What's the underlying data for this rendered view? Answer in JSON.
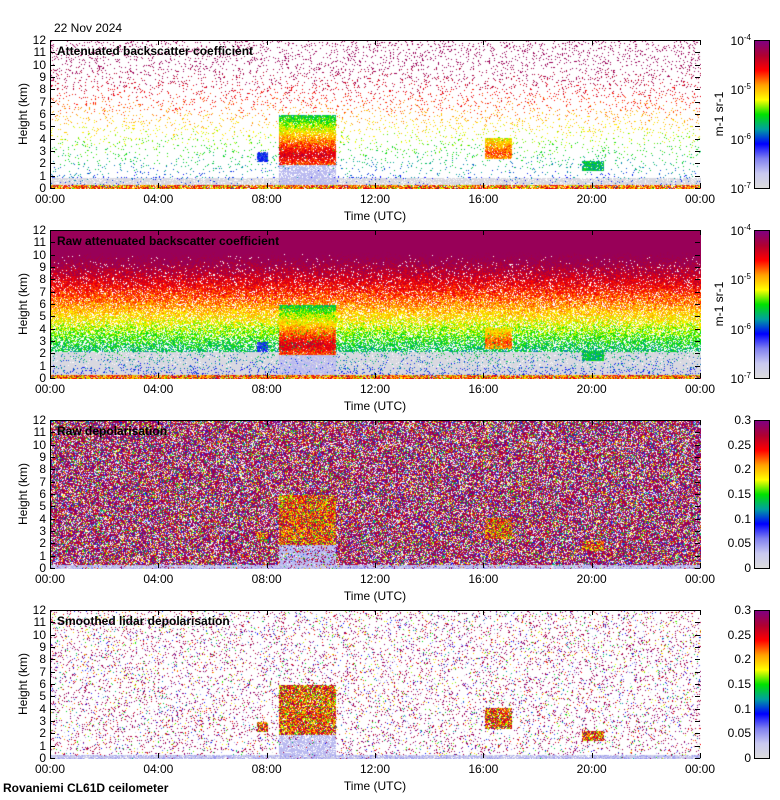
{
  "date": "22 Nov 2024",
  "footer": "Rovaniemi CL61D ceilometer",
  "colors": {
    "map": [
      "#dcdcdc",
      "#c8c8f0",
      "#8080f0",
      "#0000ff",
      "#00a0a0",
      "#00e000",
      "#ffff00",
      "#ffa000",
      "#ff0000",
      "#b00030",
      "#800080"
    ]
  },
  "chart_data": [
    {
      "type": "heatmap",
      "title": "Attenuated backscatter coefficient",
      "xlabel": "Time (UTC)",
      "ylabel": "Height (km)",
      "xticks": [
        "00:00",
        "04:00",
        "08:00",
        "12:00",
        "16:00",
        "20:00",
        "00:00"
      ],
      "xlim": [
        0,
        24
      ],
      "ylim": [
        0,
        12
      ],
      "yticks": [
        0,
        1,
        2,
        3,
        4,
        5,
        6,
        7,
        8,
        9,
        10,
        11,
        12
      ],
      "colorbar": {
        "label": "m-1 sr-1",
        "scale": "log",
        "ticks": [
          "10^-7",
          "10^-6",
          "10^-5",
          "10^-4"
        ],
        "range": [
          1e-07,
          0.0001
        ]
      },
      "noise_density": 0.08,
      "noise_kind": "backscatter"
    },
    {
      "type": "heatmap",
      "title": "Raw attenuated backscatter coefficient",
      "xlabel": "Time (UTC)",
      "ylabel": "Height (km)",
      "xticks": [
        "00:00",
        "04:00",
        "08:00",
        "12:00",
        "16:00",
        "20:00",
        "00:00"
      ],
      "xlim": [
        0,
        24
      ],
      "ylim": [
        0,
        12
      ],
      "yticks": [
        0,
        1,
        2,
        3,
        4,
        5,
        6,
        7,
        8,
        9,
        10,
        11,
        12
      ],
      "colorbar": {
        "label": "m-1 sr-1",
        "scale": "log",
        "ticks": [
          "10^-7",
          "10^-6",
          "10^-5",
          "10^-4"
        ],
        "range": [
          1e-07,
          0.0001
        ]
      },
      "noise_density": 0.9,
      "noise_kind": "backscatter"
    },
    {
      "type": "heatmap",
      "title": "Raw depolarisation",
      "xlabel": "Time (UTC)",
      "ylabel": "Height (km)",
      "xticks": [
        "00:00",
        "04:00",
        "08:00",
        "12:00",
        "16:00",
        "20:00",
        "00:00"
      ],
      "xlim": [
        0,
        24
      ],
      "ylim": [
        0,
        12
      ],
      "yticks": [
        0,
        1,
        2,
        3,
        4,
        5,
        6,
        7,
        8,
        9,
        10,
        11,
        12
      ],
      "colorbar": {
        "label": "",
        "scale": "linear",
        "ticks": [
          "0",
          "0.05",
          "0.1",
          "0.15",
          "0.2",
          "0.25",
          "0.3"
        ],
        "range": [
          0,
          0.3
        ]
      },
      "noise_density": 0.85,
      "noise_kind": "depol"
    },
    {
      "type": "heatmap",
      "title": "Smoothed lidar depolarisation",
      "xlabel": "Time (UTC)",
      "ylabel": "Height (km)",
      "xticks": [
        "00:00",
        "04:00",
        "08:00",
        "12:00",
        "16:00",
        "20:00",
        "00:00"
      ],
      "xlim": [
        0,
        24
      ],
      "ylim": [
        0,
        12
      ],
      "yticks": [
        0,
        1,
        2,
        3,
        4,
        5,
        6,
        7,
        8,
        9,
        10,
        11,
        12
      ],
      "colorbar": {
        "label": "",
        "scale": "linear",
        "ticks": [
          "0",
          "0.05",
          "0.1",
          "0.15",
          "0.2",
          "0.25",
          "0.3"
        ],
        "range": [
          0,
          0.3
        ]
      },
      "noise_density": 0.12,
      "noise_kind": "depol"
    }
  ],
  "features": [
    {
      "name": "main-cloud",
      "t": [
        8.4,
        10.5
      ],
      "h": [
        2.0,
        6.0
      ],
      "core_h": 2.8,
      "level": 0.85
    },
    {
      "name": "low-cloud",
      "t": [
        7.6,
        8.0
      ],
      "h": [
        2.2,
        3.0
      ],
      "level": 0.3
    },
    {
      "name": "afternoon-cloud",
      "t": [
        16.0,
        17.0
      ],
      "h": [
        2.5,
        4.2
      ],
      "core_h": 3.0,
      "level": 0.75
    },
    {
      "name": "evening-cloud",
      "t": [
        19.6,
        20.4
      ],
      "h": [
        1.5,
        2.3
      ],
      "level": 0.45
    },
    {
      "name": "surface-layer",
      "t": [
        0,
        24
      ],
      "h": [
        0,
        0.4
      ],
      "level": 0.8
    }
  ]
}
